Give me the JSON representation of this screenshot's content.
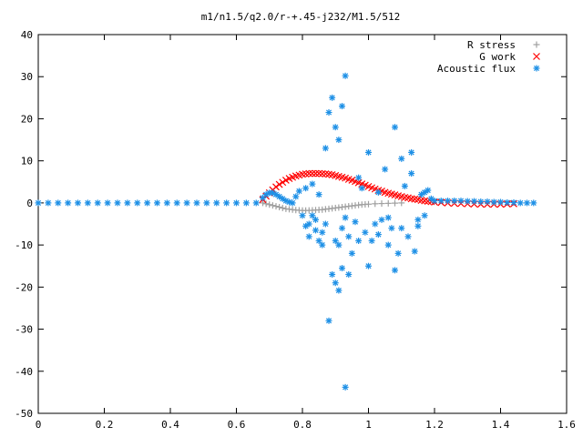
{
  "chart_data": {
    "type": "scatter",
    "title": "m1/n1.5/q2.0/r-+.45-j232/M1.5/512",
    "xlabel": "",
    "ylabel": "",
    "xlim": [
      0,
      1.6
    ],
    "ylim": [
      -50,
      40
    ],
    "x_ticks": [
      "0",
      "0.2",
      "0.4",
      "0.6",
      "0.8",
      "1",
      "1.2",
      "1.4",
      "1.6"
    ],
    "y_ticks": [
      "40",
      "30",
      "20",
      "10",
      "0",
      "-10",
      "-20",
      "-30",
      "-40",
      "-50"
    ],
    "grid": false,
    "legend_position": "top-right",
    "series": [
      {
        "name": "R stress",
        "marker": "plus",
        "color": "#a0a0a0",
        "points": [
          [
            0.68,
            0.0
          ],
          [
            0.69,
            -0.2
          ],
          [
            0.7,
            -0.4
          ],
          [
            0.71,
            -0.6
          ],
          [
            0.72,
            -0.8
          ],
          [
            0.73,
            -1.0
          ],
          [
            0.74,
            -1.2
          ],
          [
            0.75,
            -1.4
          ],
          [
            0.76,
            -1.5
          ],
          [
            0.77,
            -1.6
          ],
          [
            0.78,
            -1.7
          ],
          [
            0.79,
            -1.75
          ],
          [
            0.8,
            -1.8
          ],
          [
            0.81,
            -1.8
          ],
          [
            0.82,
            -1.78
          ],
          [
            0.83,
            -1.75
          ],
          [
            0.84,
            -1.7
          ],
          [
            0.85,
            -1.65
          ],
          [
            0.86,
            -1.6
          ],
          [
            0.87,
            -1.5
          ],
          [
            0.88,
            -1.4
          ],
          [
            0.89,
            -1.3
          ],
          [
            0.9,
            -1.2
          ],
          [
            0.91,
            -1.1
          ],
          [
            0.92,
            -1.0
          ],
          [
            0.93,
            -0.9
          ],
          [
            0.94,
            -0.8
          ],
          [
            0.95,
            -0.7
          ],
          [
            0.96,
            -0.6
          ],
          [
            0.97,
            -0.5
          ],
          [
            0.98,
            -0.4
          ],
          [
            0.99,
            -0.35
          ],
          [
            1.0,
            -0.3
          ],
          [
            1.02,
            -0.2
          ],
          [
            1.04,
            -0.15
          ],
          [
            1.06,
            -0.1
          ],
          [
            1.08,
            -0.05
          ],
          [
            1.1,
            0.0
          ]
        ]
      },
      {
        "name": "G work",
        "marker": "cross",
        "color": "#ff0000",
        "points": [
          [
            0.68,
            0.8
          ],
          [
            0.69,
            1.6
          ],
          [
            0.7,
            2.4
          ],
          [
            0.71,
            3.1
          ],
          [
            0.72,
            3.8
          ],
          [
            0.73,
            4.4
          ],
          [
            0.74,
            4.9
          ],
          [
            0.75,
            5.4
          ],
          [
            0.76,
            5.8
          ],
          [
            0.77,
            6.1
          ],
          [
            0.78,
            6.4
          ],
          [
            0.79,
            6.6
          ],
          [
            0.8,
            6.8
          ],
          [
            0.81,
            6.9
          ],
          [
            0.82,
            7.0
          ],
          [
            0.83,
            7.0
          ],
          [
            0.84,
            7.0
          ],
          [
            0.85,
            7.0
          ],
          [
            0.86,
            6.95
          ],
          [
            0.87,
            6.9
          ],
          [
            0.88,
            6.8
          ],
          [
            0.89,
            6.7
          ],
          [
            0.9,
            6.5
          ],
          [
            0.91,
            6.3
          ],
          [
            0.92,
            6.1
          ],
          [
            0.93,
            5.9
          ],
          [
            0.94,
            5.6
          ],
          [
            0.95,
            5.4
          ],
          [
            0.96,
            5.1
          ],
          [
            0.97,
            4.8
          ],
          [
            0.98,
            4.5
          ],
          [
            0.99,
            4.2
          ],
          [
            1.0,
            3.9
          ],
          [
            1.01,
            3.6
          ],
          [
            1.02,
            3.3
          ],
          [
            1.03,
            3.0
          ],
          [
            1.04,
            2.8
          ],
          [
            1.05,
            2.5
          ],
          [
            1.06,
            2.3
          ],
          [
            1.07,
            2.1
          ],
          [
            1.08,
            1.9
          ],
          [
            1.09,
            1.7
          ],
          [
            1.1,
            1.5
          ],
          [
            1.11,
            1.3
          ],
          [
            1.12,
            1.2
          ],
          [
            1.13,
            1.0
          ],
          [
            1.14,
            0.9
          ],
          [
            1.15,
            0.8
          ],
          [
            1.16,
            0.6
          ],
          [
            1.17,
            0.5
          ],
          [
            1.18,
            0.4
          ],
          [
            1.19,
            0.3
          ],
          [
            1.2,
            0.2
          ],
          [
            1.22,
            0.1
          ],
          [
            1.24,
            0.0
          ],
          [
            1.26,
            -0.1
          ],
          [
            1.28,
            -0.15
          ],
          [
            1.3,
            -0.2
          ],
          [
            1.32,
            -0.25
          ],
          [
            1.34,
            -0.3
          ],
          [
            1.36,
            -0.3
          ],
          [
            1.38,
            -0.3
          ],
          [
            1.4,
            -0.3
          ],
          [
            1.42,
            -0.25
          ],
          [
            1.44,
            -0.2
          ]
        ]
      },
      {
        "name": "Acoustic flux",
        "marker": "star",
        "color": "#1e90e6",
        "points": [
          [
            0.0,
            0.0
          ],
          [
            0.03,
            0.0
          ],
          [
            0.06,
            0.0
          ],
          [
            0.09,
            0.0
          ],
          [
            0.12,
            0.0
          ],
          [
            0.15,
            0.0
          ],
          [
            0.18,
            0.0
          ],
          [
            0.21,
            0.0
          ],
          [
            0.24,
            0.0
          ],
          [
            0.27,
            0.0
          ],
          [
            0.3,
            0.0
          ],
          [
            0.33,
            0.0
          ],
          [
            0.36,
            0.0
          ],
          [
            0.39,
            0.0
          ],
          [
            0.42,
            0.0
          ],
          [
            0.45,
            0.0
          ],
          [
            0.48,
            0.0
          ],
          [
            0.51,
            0.0
          ],
          [
            0.54,
            0.0
          ],
          [
            0.57,
            0.0
          ],
          [
            0.6,
            0.0
          ],
          [
            0.63,
            0.0
          ],
          [
            0.66,
            0.0
          ],
          [
            0.68,
            1.2
          ],
          [
            0.69,
            2.0
          ],
          [
            0.7,
            2.4
          ],
          [
            0.71,
            2.4
          ],
          [
            0.72,
            2.0
          ],
          [
            0.73,
            1.5
          ],
          [
            0.74,
            1.0
          ],
          [
            0.75,
            0.5
          ],
          [
            0.76,
            0.2
          ],
          [
            0.77,
            0.0
          ],
          [
            0.78,
            1.5
          ],
          [
            0.79,
            2.8
          ],
          [
            0.8,
            -3.0
          ],
          [
            0.81,
            3.5
          ],
          [
            0.82,
            -5.0
          ],
          [
            0.83,
            4.5
          ],
          [
            0.84,
            -4.0
          ],
          [
            0.85,
            2.0
          ],
          [
            0.86,
            -7.0
          ],
          [
            0.87,
            13.0
          ],
          [
            0.88,
            21.5
          ],
          [
            0.89,
            25.0
          ],
          [
            0.9,
            18.0
          ],
          [
            0.91,
            15.0
          ],
          [
            0.92,
            23.0
          ],
          [
            0.93,
            30.2
          ],
          [
            0.88,
            -28.0
          ],
          [
            0.89,
            -17.0
          ],
          [
            0.9,
            -19.0
          ],
          [
            0.91,
            -20.8
          ],
          [
            0.92,
            -15.5
          ],
          [
            0.93,
            -43.8
          ],
          [
            0.94,
            -17.0
          ],
          [
            0.86,
            -10.0
          ],
          [
            0.87,
            -5.0
          ],
          [
            0.85,
            -9.0
          ],
          [
            0.84,
            -6.5
          ],
          [
            0.83,
            -3.0
          ],
          [
            0.82,
            -8.0
          ],
          [
            0.81,
            -5.5
          ],
          [
            0.9,
            -9.0
          ],
          [
            0.91,
            -10.0
          ],
          [
            0.92,
            -6.0
          ],
          [
            0.93,
            -3.5
          ],
          [
            0.94,
            -8.0
          ],
          [
            0.95,
            -12.0
          ],
          [
            0.96,
            -4.5
          ],
          [
            0.97,
            6.0
          ],
          [
            0.98,
            3.5
          ],
          [
            0.99,
            -7.0
          ],
          [
            1.0,
            12.0
          ],
          [
            1.01,
            -9.0
          ],
          [
            1.02,
            -5.0
          ],
          [
            1.03,
            2.5
          ],
          [
            1.04,
            -4.0
          ],
          [
            1.05,
            8.0
          ],
          [
            1.06,
            -10.0
          ],
          [
            1.07,
            -6.0
          ],
          [
            1.08,
            18.0
          ],
          [
            1.09,
            -12.0
          ],
          [
            1.1,
            10.5
          ],
          [
            1.11,
            4.0
          ],
          [
            1.12,
            -8.0
          ],
          [
            1.13,
            12.0
          ],
          [
            1.14,
            -11.5
          ],
          [
            1.15,
            -4.0
          ],
          [
            1.16,
            2.0
          ],
          [
            1.17,
            -3.0
          ],
          [
            1.18,
            3.0
          ],
          [
            1.19,
            1.0
          ],
          [
            1.2,
            0.5
          ],
          [
            1.0,
            -15.0
          ],
          [
            1.08,
            -16.0
          ],
          [
            0.97,
            -9.0
          ],
          [
            1.03,
            -7.5
          ],
          [
            1.06,
            -3.5
          ],
          [
            1.13,
            7.0
          ],
          [
            1.1,
            -6.0
          ],
          [
            1.15,
            -5.5
          ],
          [
            1.17,
            2.5
          ],
          [
            1.22,
            0.5
          ],
          [
            1.24,
            0.5
          ],
          [
            1.26,
            0.5
          ],
          [
            1.28,
            0.5
          ],
          [
            1.3,
            0.4
          ],
          [
            1.32,
            0.4
          ],
          [
            1.34,
            0.3
          ],
          [
            1.36,
            0.3
          ],
          [
            1.38,
            0.2
          ],
          [
            1.4,
            0.2
          ],
          [
            1.42,
            0.1
          ],
          [
            1.44,
            0.1
          ],
          [
            1.46,
            0.0
          ],
          [
            1.48,
            0.0
          ],
          [
            1.5,
            0.0
          ]
        ]
      }
    ]
  }
}
